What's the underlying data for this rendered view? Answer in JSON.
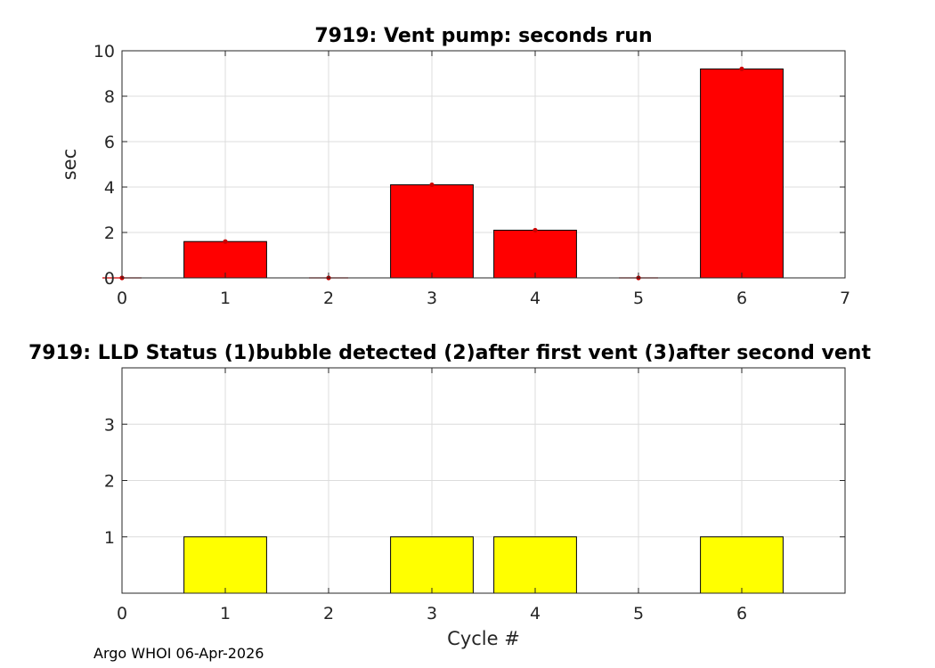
{
  "chart_data": [
    {
      "type": "bar",
      "title": "7919: Vent pump: seconds run",
      "xlabel": "",
      "ylabel": "sec",
      "x": [
        1,
        3,
        4,
        6
      ],
      "values": [
        1.6,
        4.1,
        2.1,
        9.2
      ],
      "points_x": [
        0,
        1,
        2,
        3,
        4,
        5,
        6
      ],
      "points_y": [
        0,
        1.6,
        0,
        4.1,
        2.1,
        0,
        9.2
      ],
      "xlim": [
        0,
        7
      ],
      "ylim": [
        0,
        10
      ],
      "xticks": [
        "0",
        "1",
        "2",
        "3",
        "4",
        "5",
        "6",
        "7"
      ],
      "yticks": [
        "0",
        "2",
        "4",
        "6",
        "8",
        "10"
      ],
      "grid": true,
      "bar_color": "#ff0000",
      "marker_color": "#cc0000"
    },
    {
      "type": "bar",
      "title": "7919: LLD Status   (1)bubble detected   (2)after first vent  (3)after second vent",
      "xlabel": "Cycle #",
      "ylabel": "",
      "x": [
        1,
        3,
        4,
        6
      ],
      "values": [
        1,
        1,
        1,
        1
      ],
      "xlim": [
        0,
        7
      ],
      "ylim": [
        0,
        4
      ],
      "xticks": [
        "0",
        "1",
        "2",
        "3",
        "4",
        "5",
        "6"
      ],
      "yticks": [
        "1",
        "2",
        "3"
      ],
      "grid": true,
      "bar_color": "#ffff00"
    }
  ],
  "footer": "Argo WHOI 06-Apr-2026"
}
